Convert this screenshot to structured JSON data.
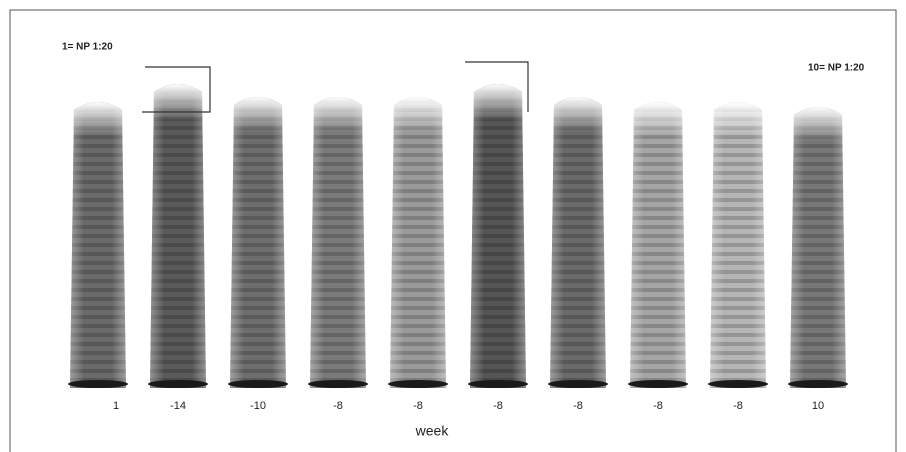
{
  "header": {
    "left_label": "1= NP 1:20",
    "right_label": "10= NP 1:20"
  },
  "lanes": [
    {
      "label": "1"
    },
    {
      "label": "-14"
    },
    {
      "label": "-10"
    },
    {
      "label": "-8"
    },
    {
      "label": "-8"
    },
    {
      "label": "-8"
    },
    {
      "label": "-8"
    },
    {
      "label": "-8"
    },
    {
      "label": "-8"
    },
    {
      "label": "10"
    }
  ],
  "x_axis_label": "week"
}
